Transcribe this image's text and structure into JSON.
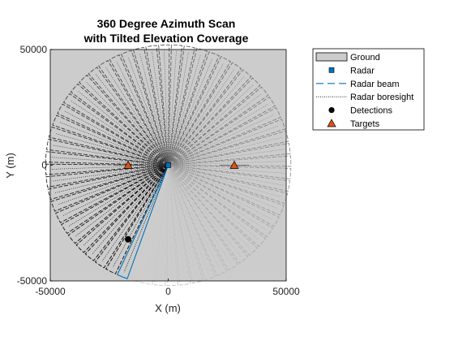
{
  "chart_data": {
    "type": "scatter",
    "title_lines": [
      "360 Degree Azimuth Scan",
      "with Tilted Elevation Coverage"
    ],
    "xlabel": "X (m)",
    "ylabel": "Y (m)",
    "xlim": [
      -50000,
      50000
    ],
    "ylim": [
      -50000,
      50000
    ],
    "x_ticks": [
      -50000,
      0,
      50000
    ],
    "y_ticks": [
      -50000,
      0,
      50000
    ],
    "x_tick_labels": [
      "-50000",
      "0",
      "50000"
    ],
    "y_tick_labels": [
      "-50000",
      "0",
      "50000"
    ],
    "grid": false,
    "legend_position": "top-right outside",
    "legend": [
      {
        "label": "Ground",
        "key": "ground"
      },
      {
        "label": "Radar",
        "key": "radar"
      },
      {
        "label": "Radar beam",
        "key": "beam"
      },
      {
        "label": "Radar boresight",
        "key": "boresight"
      },
      {
        "label": "Detections",
        "key": "detections"
      },
      {
        "label": "Targets",
        "key": "targets"
      }
    ],
    "radar": {
      "x": 0,
      "y": 0
    },
    "scan": {
      "range_max": 52000,
      "step_deg": 6,
      "current_beam_azimuth_deg": 248,
      "beam_halfwidth_deg": 2.5
    },
    "detections": [
      {
        "x": -17000,
        "y": -32000
      }
    ],
    "targets": [
      {
        "x": -17000,
        "y": 0
      },
      {
        "x": 28000,
        "y": 0
      }
    ],
    "colors": {
      "ground": "#cccccc",
      "radar": "#0072bd",
      "beam_current": "#0072bd",
      "beam_history": "#000000",
      "target_face": "#d95319",
      "detection": "#000000"
    }
  }
}
